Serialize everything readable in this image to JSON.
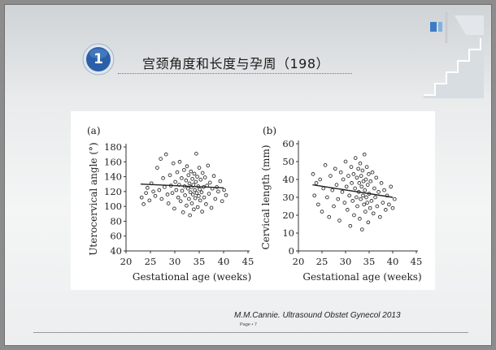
{
  "slide": {
    "badge_number": "1",
    "title": "宫颈角度和长度与孕周（198）",
    "citation": "M.M.Cannie. Ultrasound Obstet Gynecol 2013",
    "page_label": "Page • 7",
    "colors": {
      "badge_fill": "#2b5fa8",
      "badge_ring": "#e8eef6",
      "background": "#eceeef"
    }
  },
  "chart_data": [
    {
      "type": "scatter",
      "panel_label": "(a)",
      "xlabel": "Gestational age (weeks)",
      "ylabel": "Uterocervical angle (°)",
      "xlim": [
        20,
        45
      ],
      "ylim": [
        40,
        180
      ],
      "xticks": [
        20,
        25,
        30,
        35,
        40,
        45
      ],
      "yticks": [
        40,
        60,
        80,
        100,
        120,
        140,
        160,
        180
      ],
      "trend_line": {
        "x": [
          23,
          40
        ],
        "y": [
          130,
          125
        ]
      },
      "points": [
        [
          23.2,
          112
        ],
        [
          23.6,
          103
        ],
        [
          24.1,
          118
        ],
        [
          24.4,
          125
        ],
        [
          24.8,
          108
        ],
        [
          25.2,
          131
        ],
        [
          25.6,
          120
        ],
        [
          26.0,
          114
        ],
        [
          26.4,
          152
        ],
        [
          26.8,
          122
        ],
        [
          27.1,
          164
        ],
        [
          27.3,
          110
        ],
        [
          27.6,
          138
        ],
        [
          27.9,
          126
        ],
        [
          28.2,
          170
        ],
        [
          28.5,
          116
        ],
        [
          28.7,
          104
        ],
        [
          29.0,
          142
        ],
        [
          29.2,
          128
        ],
        [
          29.5,
          118
        ],
        [
          29.7,
          158
        ],
        [
          29.9,
          97
        ],
        [
          30.1,
          133
        ],
        [
          30.3,
          122
        ],
        [
          30.5,
          146
        ],
        [
          30.7,
          112
        ],
        [
          30.9,
          129
        ],
        [
          31.0,
          160
        ],
        [
          31.2,
          107
        ],
        [
          31.4,
          138
        ],
        [
          31.5,
          121
        ],
        [
          31.7,
          92
        ],
        [
          31.9,
          149
        ],
        [
          32.0,
          127
        ],
        [
          32.1,
          115
        ],
        [
          32.3,
          135
        ],
        [
          32.4,
          101
        ],
        [
          32.5,
          154
        ],
        [
          32.7,
          124
        ],
        [
          32.8,
          142
        ],
        [
          32.9,
          110
        ],
        [
          33.0,
          131
        ],
        [
          33.1,
          88
        ],
        [
          33.2,
          119
        ],
        [
          33.3,
          147
        ],
        [
          33.4,
          126
        ],
        [
          33.5,
          104
        ],
        [
          33.6,
          137
        ],
        [
          33.7,
          116
        ],
        [
          33.8,
          129
        ],
        [
          33.9,
          96
        ],
        [
          34.0,
          144
        ],
        [
          34.1,
          122
        ],
        [
          34.2,
          111
        ],
        [
          34.3,
          133
        ],
        [
          34.4,
          171
        ],
        [
          34.5,
          118
        ],
        [
          34.6,
          140
        ],
        [
          34.7,
          99
        ],
        [
          34.8,
          127
        ],
        [
          34.9,
          114
        ],
        [
          35.0,
          152
        ],
        [
          35.1,
          123
        ],
        [
          35.2,
          108
        ],
        [
          35.3,
          136
        ],
        [
          35.5,
          119
        ],
        [
          35.6,
          93
        ],
        [
          35.7,
          145
        ],
        [
          35.9,
          126
        ],
        [
          36.0,
          112
        ],
        [
          36.2,
          139
        ],
        [
          36.4,
          103
        ],
        [
          36.6,
          128
        ],
        [
          36.8,
          155
        ],
        [
          37.0,
          117
        ],
        [
          37.2,
          132
        ],
        [
          37.5,
          98
        ],
        [
          37.7,
          124
        ],
        [
          38.0,
          141
        ],
        [
          38.3,
          110
        ],
        [
          38.6,
          126
        ],
        [
          38.9,
          120
        ],
        [
          39.3,
          134
        ],
        [
          39.7,
          107
        ],
        [
          40.1,
          122
        ],
        [
          40.5,
          115
        ]
      ]
    },
    {
      "type": "scatter",
      "panel_label": "(b)",
      "xlabel": "Gestational age (weeks)",
      "ylabel": "Cervical length (mm)",
      "xlim": [
        20,
        45
      ],
      "ylim": [
        0,
        60
      ],
      "xticks": [
        20,
        25,
        30,
        35,
        40,
        45
      ],
      "yticks": [
        0,
        10,
        20,
        30,
        40,
        50,
        60
      ],
      "trend_line": {
        "x": [
          23,
          40
        ],
        "y": [
          37,
          30
        ]
      },
      "points": [
        [
          23.1,
          43
        ],
        [
          23.4,
          31
        ],
        [
          23.8,
          38
        ],
        [
          24.2,
          26
        ],
        [
          24.6,
          40
        ],
        [
          25.0,
          22
        ],
        [
          25.3,
          35
        ],
        [
          25.7,
          48
        ],
        [
          26.1,
          30
        ],
        [
          26.5,
          19
        ],
        [
          26.8,
          42
        ],
        [
          27.2,
          34
        ],
        [
          27.5,
          25
        ],
        [
          27.8,
          46
        ],
        [
          28.1,
          37
        ],
        [
          28.4,
          29
        ],
        [
          28.7,
          17
        ],
        [
          29.0,
          44
        ],
        [
          29.3,
          33
        ],
        [
          29.5,
          40
        ],
        [
          29.8,
          27
        ],
        [
          30.0,
          50
        ],
        [
          30.2,
          36
        ],
        [
          30.4,
          23
        ],
        [
          30.6,
          42
        ],
        [
          30.8,
          31
        ],
        [
          31.0,
          14
        ],
        [
          31.2,
          47
        ],
        [
          31.3,
          38
        ],
        [
          31.5,
          28
        ],
        [
          31.7,
          43
        ],
        [
          31.8,
          20
        ],
        [
          32.0,
          35
        ],
        [
          32.1,
          52
        ],
        [
          32.3,
          30
        ],
        [
          32.4,
          41
        ],
        [
          32.5,
          25
        ],
        [
          32.7,
          46
        ],
        [
          32.8,
          33
        ],
        [
          32.9,
          38
        ],
        [
          33.0,
          18
        ],
        [
          33.1,
          49
        ],
        [
          33.2,
          29
        ],
        [
          33.3,
          42
        ],
        [
          33.4,
          36
        ],
        [
          33.5,
          12
        ],
        [
          33.6,
          45
        ],
        [
          33.7,
          31
        ],
        [
          33.8,
          39
        ],
        [
          33.9,
          26
        ],
        [
          34.0,
          54
        ],
        [
          34.1,
          34
        ],
        [
          34.2,
          22
        ],
        [
          34.3,
          40
        ],
        [
          34.4,
          30
        ],
        [
          34.5,
          47
        ],
        [
          34.6,
          27
        ],
        [
          34.7,
          37
        ],
        [
          34.8,
          16
        ],
        [
          34.9,
          43
        ],
        [
          35.0,
          32
        ],
        [
          35.2,
          24
        ],
        [
          35.3,
          39
        ],
        [
          35.5,
          28
        ],
        [
          35.7,
          44
        ],
        [
          35.9,
          21
        ],
        [
          36.1,
          35
        ],
        [
          36.3,
          30
        ],
        [
          36.5,
          41
        ],
        [
          36.7,
          25
        ],
        [
          37.0,
          33
        ],
        [
          37.3,
          19
        ],
        [
          37.6,
          38
        ],
        [
          37.9,
          27
        ],
        [
          38.2,
          34
        ],
        [
          38.5,
          23
        ],
        [
          38.8,
          31
        ],
        [
          39.2,
          26
        ],
        [
          39.6,
          36
        ],
        [
          40.0,
          24
        ],
        [
          40.4,
          29
        ]
      ]
    }
  ]
}
